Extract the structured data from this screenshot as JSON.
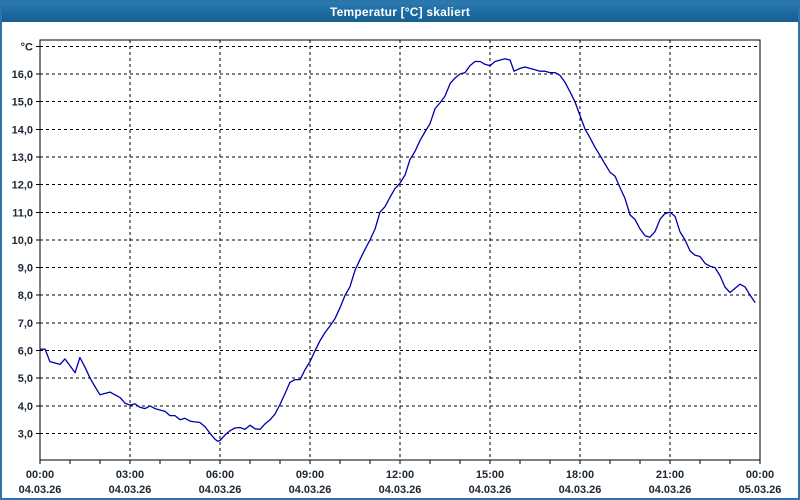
{
  "window": {
    "title": "Temperatur [°C] skaliert"
  },
  "colors": {
    "line": "#0000a8",
    "grid": "#000000",
    "frame": "#000000",
    "label": "#1d2733",
    "titlebar": "#1b6aa0",
    "titlebar_text": "#ffffff",
    "window_border": "#2d74a8",
    "background": "#ffffff"
  },
  "chart_data": {
    "type": "line",
    "title": "Temperatur [°C] skaliert",
    "xlabel": "",
    "ylabel": "°C",
    "y_unit_label": "°C",
    "grid": "dashed",
    "legend": "none",
    "ylim": [
      2.0,
      17.25
    ],
    "xlim_hours": [
      0,
      24
    ],
    "y_gridline_values": [
      3,
      4,
      5,
      6,
      7,
      8,
      9,
      10,
      11,
      12,
      13,
      14,
      15,
      16,
      17
    ],
    "y_ticks": [
      {
        "value": 16,
        "label": "16,0"
      },
      {
        "value": 15,
        "label": "15,0"
      },
      {
        "value": 14,
        "label": "14,0"
      },
      {
        "value": 13,
        "label": "13,0"
      },
      {
        "value": 12,
        "label": "12,0"
      },
      {
        "value": 11,
        "label": "11,0"
      },
      {
        "value": 10,
        "label": "10,0"
      },
      {
        "value": 9,
        "label": "9,0"
      },
      {
        "value": 8,
        "label": "8,0"
      },
      {
        "value": 7,
        "label": "7,0"
      },
      {
        "value": 6,
        "label": "6,0"
      },
      {
        "value": 5,
        "label": "5,0"
      },
      {
        "value": 4,
        "label": "4,0"
      },
      {
        "value": 3,
        "label": "3,0"
      }
    ],
    "x_ticks": [
      {
        "hour": 0,
        "time": "00:00",
        "date": "04.03.26"
      },
      {
        "hour": 3,
        "time": "03:00",
        "date": "04.03.26"
      },
      {
        "hour": 6,
        "time": "06:00",
        "date": "04.03.26"
      },
      {
        "hour": 9,
        "time": "09:00",
        "date": "04.03.26"
      },
      {
        "hour": 12,
        "time": "12:00",
        "date": "04.03.26"
      },
      {
        "hour": 15,
        "time": "15:00",
        "date": "04.03.26"
      },
      {
        "hour": 18,
        "time": "18:00",
        "date": "04.03.26"
      },
      {
        "hour": 21,
        "time": "21:00",
        "date": "04.03.26"
      },
      {
        "hour": 24,
        "time": "00:00",
        "date": "05.03.26"
      }
    ],
    "x_minor_tick_every_hours": 1,
    "x_gridline_hours": [
      3,
      6,
      9,
      12,
      15,
      18,
      21
    ],
    "series": [
      {
        "name": "Temperatur",
        "unit": "°C",
        "color": "#0000a8",
        "points": [
          [
            0,
            6.05
          ],
          [
            0.17,
            6.05
          ],
          [
            0.33,
            5.6
          ],
          [
            0.5,
            5.55
          ],
          [
            0.67,
            5.5
          ],
          [
            0.83,
            5.7
          ],
          [
            1,
            5.45
          ],
          [
            1.17,
            5.2
          ],
          [
            1.33,
            5.75
          ],
          [
            1.5,
            5.4
          ],
          [
            1.67,
            5.0
          ],
          [
            1.83,
            4.7
          ],
          [
            2,
            4.4
          ],
          [
            2.17,
            4.45
          ],
          [
            2.33,
            4.5
          ],
          [
            2.5,
            4.4
          ],
          [
            2.67,
            4.3
          ],
          [
            2.83,
            4.1
          ],
          [
            3,
            4.03
          ],
          [
            3.17,
            4.07
          ],
          [
            3.33,
            3.95
          ],
          [
            3.5,
            3.9
          ],
          [
            3.67,
            4.0
          ],
          [
            3.83,
            3.9
          ],
          [
            4,
            3.85
          ],
          [
            4.17,
            3.8
          ],
          [
            4.33,
            3.65
          ],
          [
            4.5,
            3.65
          ],
          [
            4.67,
            3.5
          ],
          [
            4.83,
            3.55
          ],
          [
            5,
            3.45
          ],
          [
            5.17,
            3.42
          ],
          [
            5.33,
            3.4
          ],
          [
            5.5,
            3.25
          ],
          [
            5.67,
            3.0
          ],
          [
            5.83,
            2.8
          ],
          [
            5.92,
            2.72
          ],
          [
            6,
            2.75
          ],
          [
            6.17,
            2.95
          ],
          [
            6.33,
            3.1
          ],
          [
            6.5,
            3.2
          ],
          [
            6.67,
            3.22
          ],
          [
            6.83,
            3.15
          ],
          [
            7,
            3.3
          ],
          [
            7.17,
            3.17
          ],
          [
            7.33,
            3.15
          ],
          [
            7.5,
            3.35
          ],
          [
            7.67,
            3.5
          ],
          [
            7.83,
            3.7
          ],
          [
            8,
            4.05
          ],
          [
            8.17,
            4.45
          ],
          [
            8.33,
            4.85
          ],
          [
            8.5,
            4.95
          ],
          [
            8.67,
            4.95
          ],
          [
            8.83,
            5.3
          ],
          [
            9,
            5.6
          ],
          [
            9.17,
            6.0
          ],
          [
            9.33,
            6.35
          ],
          [
            9.5,
            6.65
          ],
          [
            9.67,
            6.9
          ],
          [
            9.83,
            7.15
          ],
          [
            10,
            7.55
          ],
          [
            10.17,
            8.0
          ],
          [
            10.33,
            8.3
          ],
          [
            10.5,
            8.9
          ],
          [
            10.67,
            9.3
          ],
          [
            10.83,
            9.65
          ],
          [
            11,
            10.0
          ],
          [
            11.17,
            10.4
          ],
          [
            11.33,
            11.0
          ],
          [
            11.5,
            11.2
          ],
          [
            11.67,
            11.55
          ],
          [
            11.83,
            11.85
          ],
          [
            12,
            12.05
          ],
          [
            12.17,
            12.35
          ],
          [
            12.33,
            12.9
          ],
          [
            12.5,
            13.2
          ],
          [
            12.67,
            13.6
          ],
          [
            12.83,
            13.9
          ],
          [
            13,
            14.2
          ],
          [
            13.17,
            14.75
          ],
          [
            13.33,
            14.95
          ],
          [
            13.5,
            15.2
          ],
          [
            13.67,
            15.65
          ],
          [
            13.83,
            15.85
          ],
          [
            14,
            16.0
          ],
          [
            14.17,
            16.05
          ],
          [
            14.33,
            16.3
          ],
          [
            14.5,
            16.45
          ],
          [
            14.67,
            16.45
          ],
          [
            14.83,
            16.35
          ],
          [
            15,
            16.3
          ],
          [
            15.17,
            16.45
          ],
          [
            15.33,
            16.5
          ],
          [
            15.5,
            16.55
          ],
          [
            15.67,
            16.5
          ],
          [
            15.8,
            16.1
          ],
          [
            16,
            16.2
          ],
          [
            16.17,
            16.25
          ],
          [
            16.33,
            16.2
          ],
          [
            16.5,
            16.15
          ],
          [
            16.67,
            16.1
          ],
          [
            16.83,
            16.1
          ],
          [
            17,
            16.05
          ],
          [
            17.17,
            16.05
          ],
          [
            17.33,
            15.95
          ],
          [
            17.5,
            15.7
          ],
          [
            17.67,
            15.35
          ],
          [
            17.83,
            15.0
          ],
          [
            18,
            14.5
          ],
          [
            18.17,
            14.0
          ],
          [
            18.33,
            13.7
          ],
          [
            18.5,
            13.35
          ],
          [
            18.67,
            13.05
          ],
          [
            18.83,
            12.75
          ],
          [
            19,
            12.45
          ],
          [
            19.17,
            12.3
          ],
          [
            19.33,
            11.9
          ],
          [
            19.5,
            11.5
          ],
          [
            19.67,
            10.9
          ],
          [
            19.83,
            10.75
          ],
          [
            20,
            10.4
          ],
          [
            20.17,
            10.15
          ],
          [
            20.33,
            10.1
          ],
          [
            20.5,
            10.3
          ],
          [
            20.67,
            10.75
          ],
          [
            20.83,
            10.95
          ],
          [
            21,
            11.0
          ],
          [
            21.17,
            10.85
          ],
          [
            21.33,
            10.3
          ],
          [
            21.5,
            10.0
          ],
          [
            21.67,
            9.6
          ],
          [
            21.83,
            9.45
          ],
          [
            22,
            9.4
          ],
          [
            22.17,
            9.15
          ],
          [
            22.33,
            9.05
          ],
          [
            22.5,
            9.0
          ],
          [
            22.67,
            8.7
          ],
          [
            22.83,
            8.3
          ],
          [
            23,
            8.1
          ],
          [
            23.17,
            8.25
          ],
          [
            23.33,
            8.4
          ],
          [
            23.5,
            8.3
          ],
          [
            23.67,
            8.0
          ],
          [
            23.83,
            7.75
          ]
        ]
      }
    ]
  }
}
